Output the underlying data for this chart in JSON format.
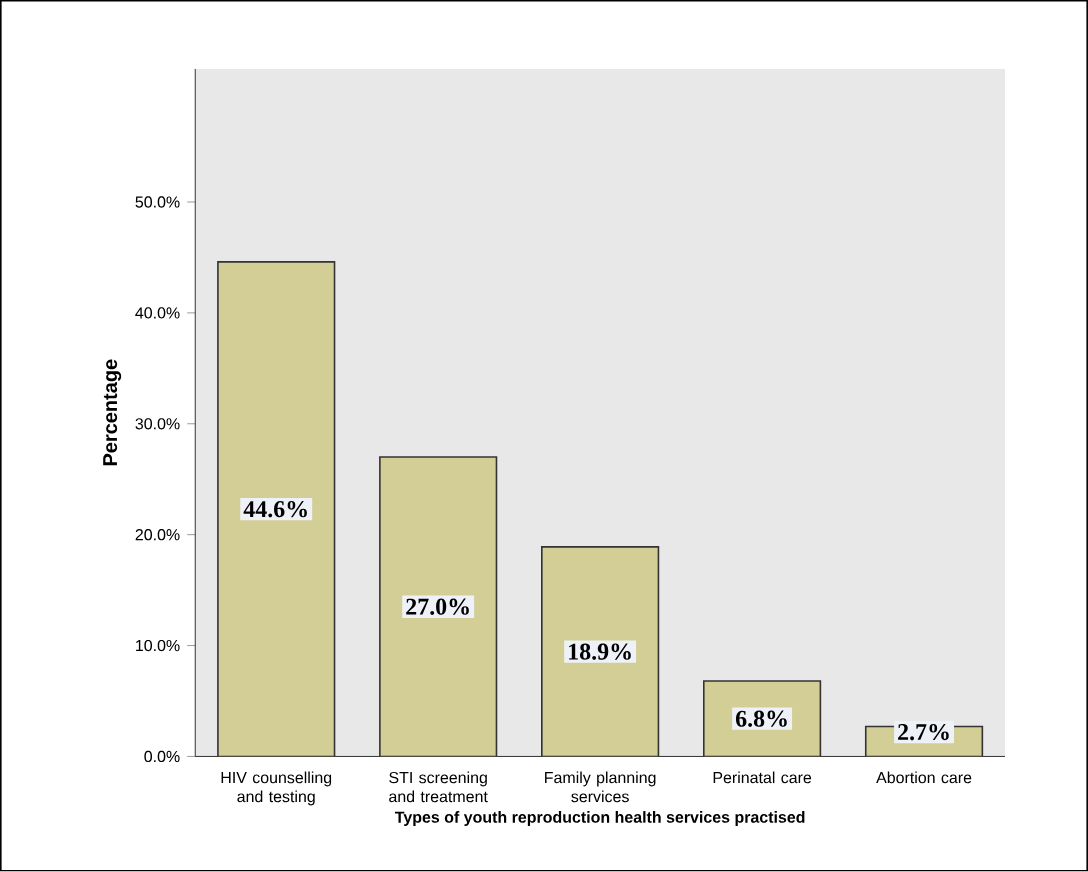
{
  "chart_data": {
    "type": "bar",
    "xlabel": "Types of youth reproduction health services practised",
    "ylabel": "Percentage",
    "categories": [
      "HIV counselling and testing",
      "STI screening and treatment",
      "Family planning services",
      "Perinatal care",
      "Abortion care"
    ],
    "values": [
      44.6,
      27.0,
      18.9,
      6.8,
      2.7
    ],
    "value_labels": [
      "44.6%",
      "27.0%",
      "18.9%",
      "6.8%",
      "2.7%"
    ],
    "color": "#d3ce96",
    "ylim": [
      0,
      62
    ],
    "yticks": [
      {
        "value": 0,
        "label": "0.0%"
      },
      {
        "value": 10,
        "label": "10.0%"
      },
      {
        "value": 20,
        "label": "20.0%"
      },
      {
        "value": 30,
        "label": "30.0%"
      },
      {
        "value": 40,
        "label": "40.0%"
      },
      {
        "value": 50,
        "label": "50.0%"
      }
    ],
    "grid": false
  }
}
